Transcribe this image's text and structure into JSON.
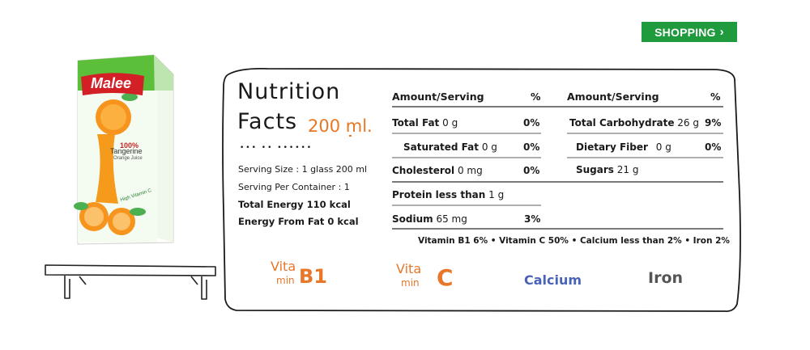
{
  "shopping_button": {
    "label": "SHOPPING"
  },
  "product": {
    "brand": "Malee",
    "percent": "100%",
    "flavor": "Tangerine",
    "flavor_sub": "Orange Juice",
    "badge": "High Vitamin C"
  },
  "panel": {
    "title_line1": "Nutrition",
    "title_line2": "Facts",
    "amount": "200 ml.",
    "subtitle_dots": "••• •• ••••••",
    "serving_size": "Serving Size : 1 glass 200 ml",
    "serving_per_container": "Serving  Per Container : 1",
    "total_energy": "Total Energy 110 kcal",
    "energy_from_fat": "Energy From Fat 0 kcal"
  },
  "table": {
    "left_header": {
      "label": "Amount/Serving",
      "pct": "%"
    },
    "right_header": {
      "label": "Amount/Serving",
      "pct": "%"
    },
    "left_rows": [
      {
        "name": "Total Fat",
        "amount": "0 g",
        "pct": "0%"
      },
      {
        "name": "Saturated Fat",
        "amount": "0 g",
        "pct": "0%"
      },
      {
        "name": "Cholesterol",
        "amount": "0 mg",
        "pct": "0%"
      },
      {
        "name": "Protein less than",
        "amount": "1 g",
        "pct": ""
      },
      {
        "name": "Sodium",
        "amount": "65 mg",
        "pct": "3%"
      }
    ],
    "right_rows": [
      {
        "name": "Total Carbohydrate",
        "amount": "26 g",
        "pct": "9%"
      },
      {
        "name": "Dietary Fiber",
        "amount": "0 g",
        "pct": "0%"
      },
      {
        "name": "Sugars",
        "amount": "21 g",
        "pct": ""
      }
    ],
    "vitamins_line": "Vitamin B1 6% • Vitamin C 50% • Calcium less than 2% • Iron 2%"
  },
  "icons": [
    {
      "name": "vitamin-b1-icon",
      "line1": "Vita",
      "line2": "min",
      "big": "B1",
      "color": "#e8772a"
    },
    {
      "name": "vitamin-c-icon",
      "line1": "Vita",
      "line2": "min",
      "big": "C",
      "color": "#e8772a"
    },
    {
      "name": "calcium-icon",
      "label": "Calcium",
      "color": "#4a63b7"
    },
    {
      "name": "iron-icon",
      "label": "Iron",
      "color": "#555555"
    }
  ],
  "colors": {
    "shopping_green": "#1f9a3c",
    "accent_orange": "#e87722",
    "carton_green": "#5cbf3a"
  }
}
